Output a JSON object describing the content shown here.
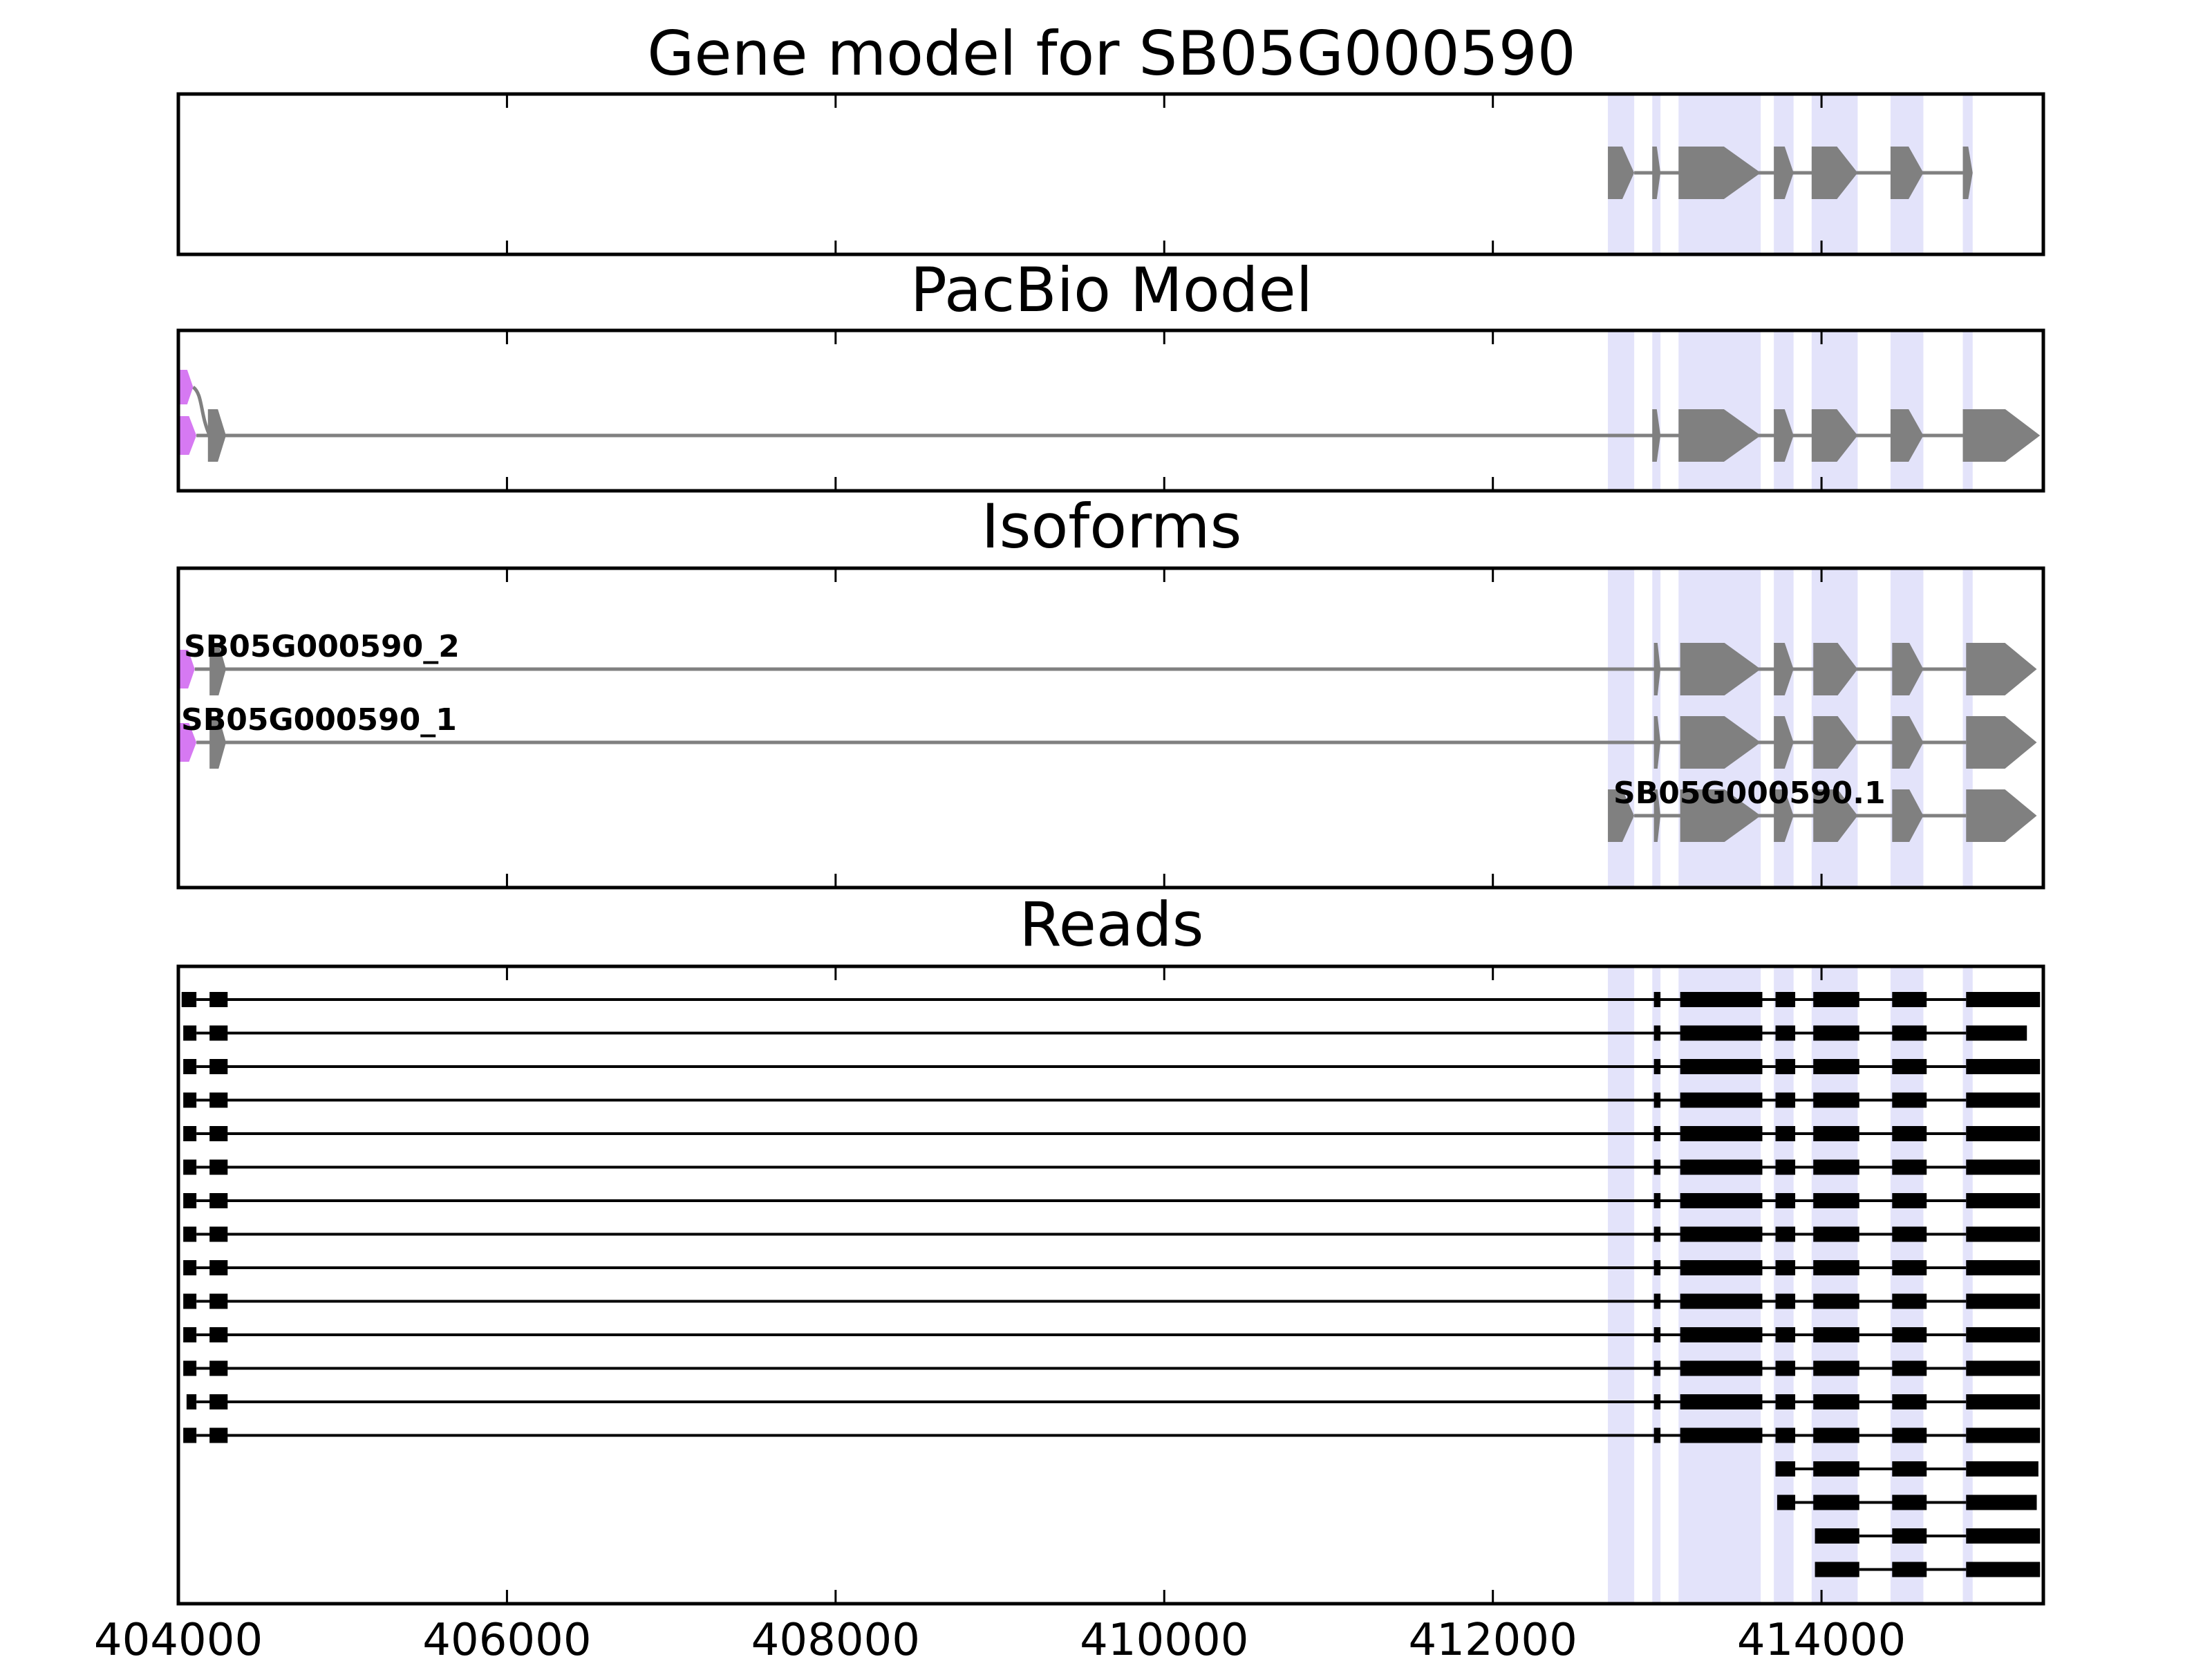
{
  "figure": {
    "title": "Gene model for SB05G000590",
    "colors": {
      "exon": "#808080",
      "intron": "#808080",
      "utr_5prime": "#d679f2",
      "read": "#000000",
      "highlight": "#e3e3fa",
      "axis": "#000000"
    },
    "x_axis": {
      "range": [
        404000,
        415350
      ],
      "ticks": [
        404000,
        406000,
        408000,
        410000,
        412000,
        414000
      ],
      "tick_labels": [
        "404000",
        "406000",
        "408000",
        "410000",
        "412000",
        "414000"
      ]
    },
    "exon_highlights": [
      [
        412700,
        412860
      ],
      [
        412970,
        413020
      ],
      [
        413130,
        413630
      ],
      [
        413710,
        413830
      ],
      [
        413940,
        414220
      ],
      [
        414420,
        414620
      ],
      [
        414860,
        414920
      ]
    ],
    "panels": [
      {
        "id": "gene-model",
        "title": "Gene model for SB05G000590",
        "tracks": [
          {
            "label": "",
            "exons": [
              [
                412700,
                412860
              ],
              [
                412970,
                413020
              ],
              [
                413130,
                413630
              ],
              [
                413710,
                413830
              ],
              [
                413940,
                414220
              ],
              [
                414420,
                414620
              ],
              [
                414860,
                414920
              ]
            ]
          }
        ]
      },
      {
        "id": "pacbio-model",
        "title": "PacBio Model",
        "tracks": [
          {
            "label": "",
            "utr5": [
              [
                404010,
                404090
              ]
            ],
            "exons": [],
            "alt": true
          },
          {
            "label": "",
            "utr5": [
              [
                404010,
                404110
              ]
            ],
            "exons": [
              [
                404180,
                404290
              ],
              [
                412970,
                413020
              ],
              [
                413130,
                413630
              ],
              [
                413710,
                413830
              ],
              [
                413940,
                414220
              ],
              [
                414420,
                414620
              ],
              [
                414860,
                415330
              ]
            ]
          }
        ]
      },
      {
        "id": "isoforms",
        "title": "Isoforms",
        "tracks": [
          {
            "label": "SB05G000590_2",
            "utr5": [
              [
                404010,
                404100
              ]
            ],
            "exons": [
              [
                404190,
                404290
              ],
              [
                412980,
                413020
              ],
              [
                413140,
                413630
              ],
              [
                413710,
                413830
              ],
              [
                413950,
                414220
              ],
              [
                414430,
                414620
              ],
              [
                414880,
                415310
              ]
            ]
          },
          {
            "label": "SB05G000590_1",
            "utr5": [
              [
                404010,
                404110
              ]
            ],
            "exons": [
              [
                404190,
                404290
              ],
              [
                412980,
                413020
              ],
              [
                413140,
                413630
              ],
              [
                413710,
                413830
              ],
              [
                413950,
                414220
              ],
              [
                414430,
                414620
              ],
              [
                414880,
                415310
              ]
            ]
          },
          {
            "label": "SB05G000590.1",
            "exons": [
              [
                412700,
                412860
              ],
              [
                412980,
                413020
              ],
              [
                413140,
                413630
              ],
              [
                413710,
                413830
              ],
              [
                413950,
                414220
              ],
              [
                414430,
                414620
              ],
              [
                414880,
                415310
              ]
            ]
          }
        ]
      },
      {
        "id": "reads",
        "title": "Reads",
        "reads": [
          [
            [
              404020,
              404110
            ],
            [
              404190,
              404300
            ],
            [
              412980,
              413020
            ],
            [
              413140,
              413640
            ],
            [
              413720,
              413840
            ],
            [
              413950,
              414230
            ],
            [
              414430,
              414640
            ],
            [
              414880,
              415330
            ]
          ],
          [
            [
              404030,
              404110
            ],
            [
              404190,
              404300
            ],
            [
              412980,
              413020
            ],
            [
              413140,
              413640
            ],
            [
              413720,
              413840
            ],
            [
              413950,
              414230
            ],
            [
              414430,
              414640
            ],
            [
              414880,
              415250
            ]
          ],
          [
            [
              404030,
              404110
            ],
            [
              404190,
              404300
            ],
            [
              412980,
              413020
            ],
            [
              413140,
              413640
            ],
            [
              413720,
              413840
            ],
            [
              413950,
              414230
            ],
            [
              414430,
              414640
            ],
            [
              414880,
              415330
            ]
          ],
          [
            [
              404030,
              404110
            ],
            [
              404190,
              404300
            ],
            [
              412980,
              413020
            ],
            [
              413140,
              413640
            ],
            [
              413720,
              413840
            ],
            [
              413950,
              414230
            ],
            [
              414430,
              414640
            ],
            [
              414880,
              415330
            ]
          ],
          [
            [
              404030,
              404110
            ],
            [
              404190,
              404300
            ],
            [
              412980,
              413020
            ],
            [
              413140,
              413640
            ],
            [
              413720,
              413840
            ],
            [
              413950,
              414230
            ],
            [
              414430,
              414640
            ],
            [
              414880,
              415330
            ]
          ],
          [
            [
              404030,
              404110
            ],
            [
              404190,
              404300
            ],
            [
              412980,
              413020
            ],
            [
              413140,
              413640
            ],
            [
              413720,
              413840
            ],
            [
              413950,
              414230
            ],
            [
              414430,
              414640
            ],
            [
              414880,
              415330
            ]
          ],
          [
            [
              404030,
              404110
            ],
            [
              404190,
              404300
            ],
            [
              412980,
              413020
            ],
            [
              413140,
              413640
            ],
            [
              413720,
              413840
            ],
            [
              413950,
              414230
            ],
            [
              414430,
              414640
            ],
            [
              414880,
              415330
            ]
          ],
          [
            [
              404030,
              404110
            ],
            [
              404190,
              404300
            ],
            [
              412980,
              413020
            ],
            [
              413140,
              413640
            ],
            [
              413720,
              413840
            ],
            [
              413950,
              414230
            ],
            [
              414430,
              414640
            ],
            [
              414880,
              415330
            ]
          ],
          [
            [
              404030,
              404110
            ],
            [
              404190,
              404300
            ],
            [
              412980,
              413020
            ],
            [
              413140,
              413640
            ],
            [
              413720,
              413840
            ],
            [
              413950,
              414230
            ],
            [
              414430,
              414640
            ],
            [
              414880,
              415330
            ]
          ],
          [
            [
              404030,
              404110
            ],
            [
              404190,
              404300
            ],
            [
              412980,
              413020
            ],
            [
              413140,
              413640
            ],
            [
              413720,
              413840
            ],
            [
              413950,
              414230
            ],
            [
              414430,
              414640
            ],
            [
              414880,
              415330
            ]
          ],
          [
            [
              404030,
              404110
            ],
            [
              404190,
              404300
            ],
            [
              412980,
              413020
            ],
            [
              413140,
              413640
            ],
            [
              413720,
              413840
            ],
            [
              413950,
              414230
            ],
            [
              414430,
              414640
            ],
            [
              414880,
              415330
            ]
          ],
          [
            [
              404030,
              404110
            ],
            [
              404190,
              404300
            ],
            [
              412980,
              413020
            ],
            [
              413140,
              413640
            ],
            [
              413720,
              413840
            ],
            [
              413950,
              414230
            ],
            [
              414430,
              414640
            ],
            [
              414880,
              415330
            ]
          ],
          [
            [
              404050,
              404110
            ],
            [
              404190,
              404300
            ],
            [
              412980,
              413020
            ],
            [
              413140,
              413640
            ],
            [
              413720,
              413840
            ],
            [
              413950,
              414230
            ],
            [
              414430,
              414640
            ],
            [
              414880,
              415330
            ]
          ],
          [
            [
              404030,
              404110
            ],
            [
              404190,
              404300
            ],
            [
              412980,
              413020
            ],
            [
              413140,
              413640
            ],
            [
              413720,
              413840
            ],
            [
              413950,
              414230
            ],
            [
              414430,
              414640
            ],
            [
              414880,
              415330
            ]
          ],
          [
            [
              413720,
              413840
            ],
            [
              413950,
              414230
            ],
            [
              414430,
              414640
            ],
            [
              414880,
              415320
            ]
          ],
          [
            [
              413730,
              413840
            ],
            [
              413950,
              414230
            ],
            [
              414430,
              414640
            ],
            [
              414880,
              415310
            ]
          ],
          [
            [
              413960,
              414230
            ],
            [
              414430,
              414640
            ],
            [
              414880,
              415330
            ]
          ],
          [
            [
              413960,
              414230
            ],
            [
              414430,
              414640
            ],
            [
              414880,
              415330
            ]
          ]
        ]
      }
    ]
  }
}
